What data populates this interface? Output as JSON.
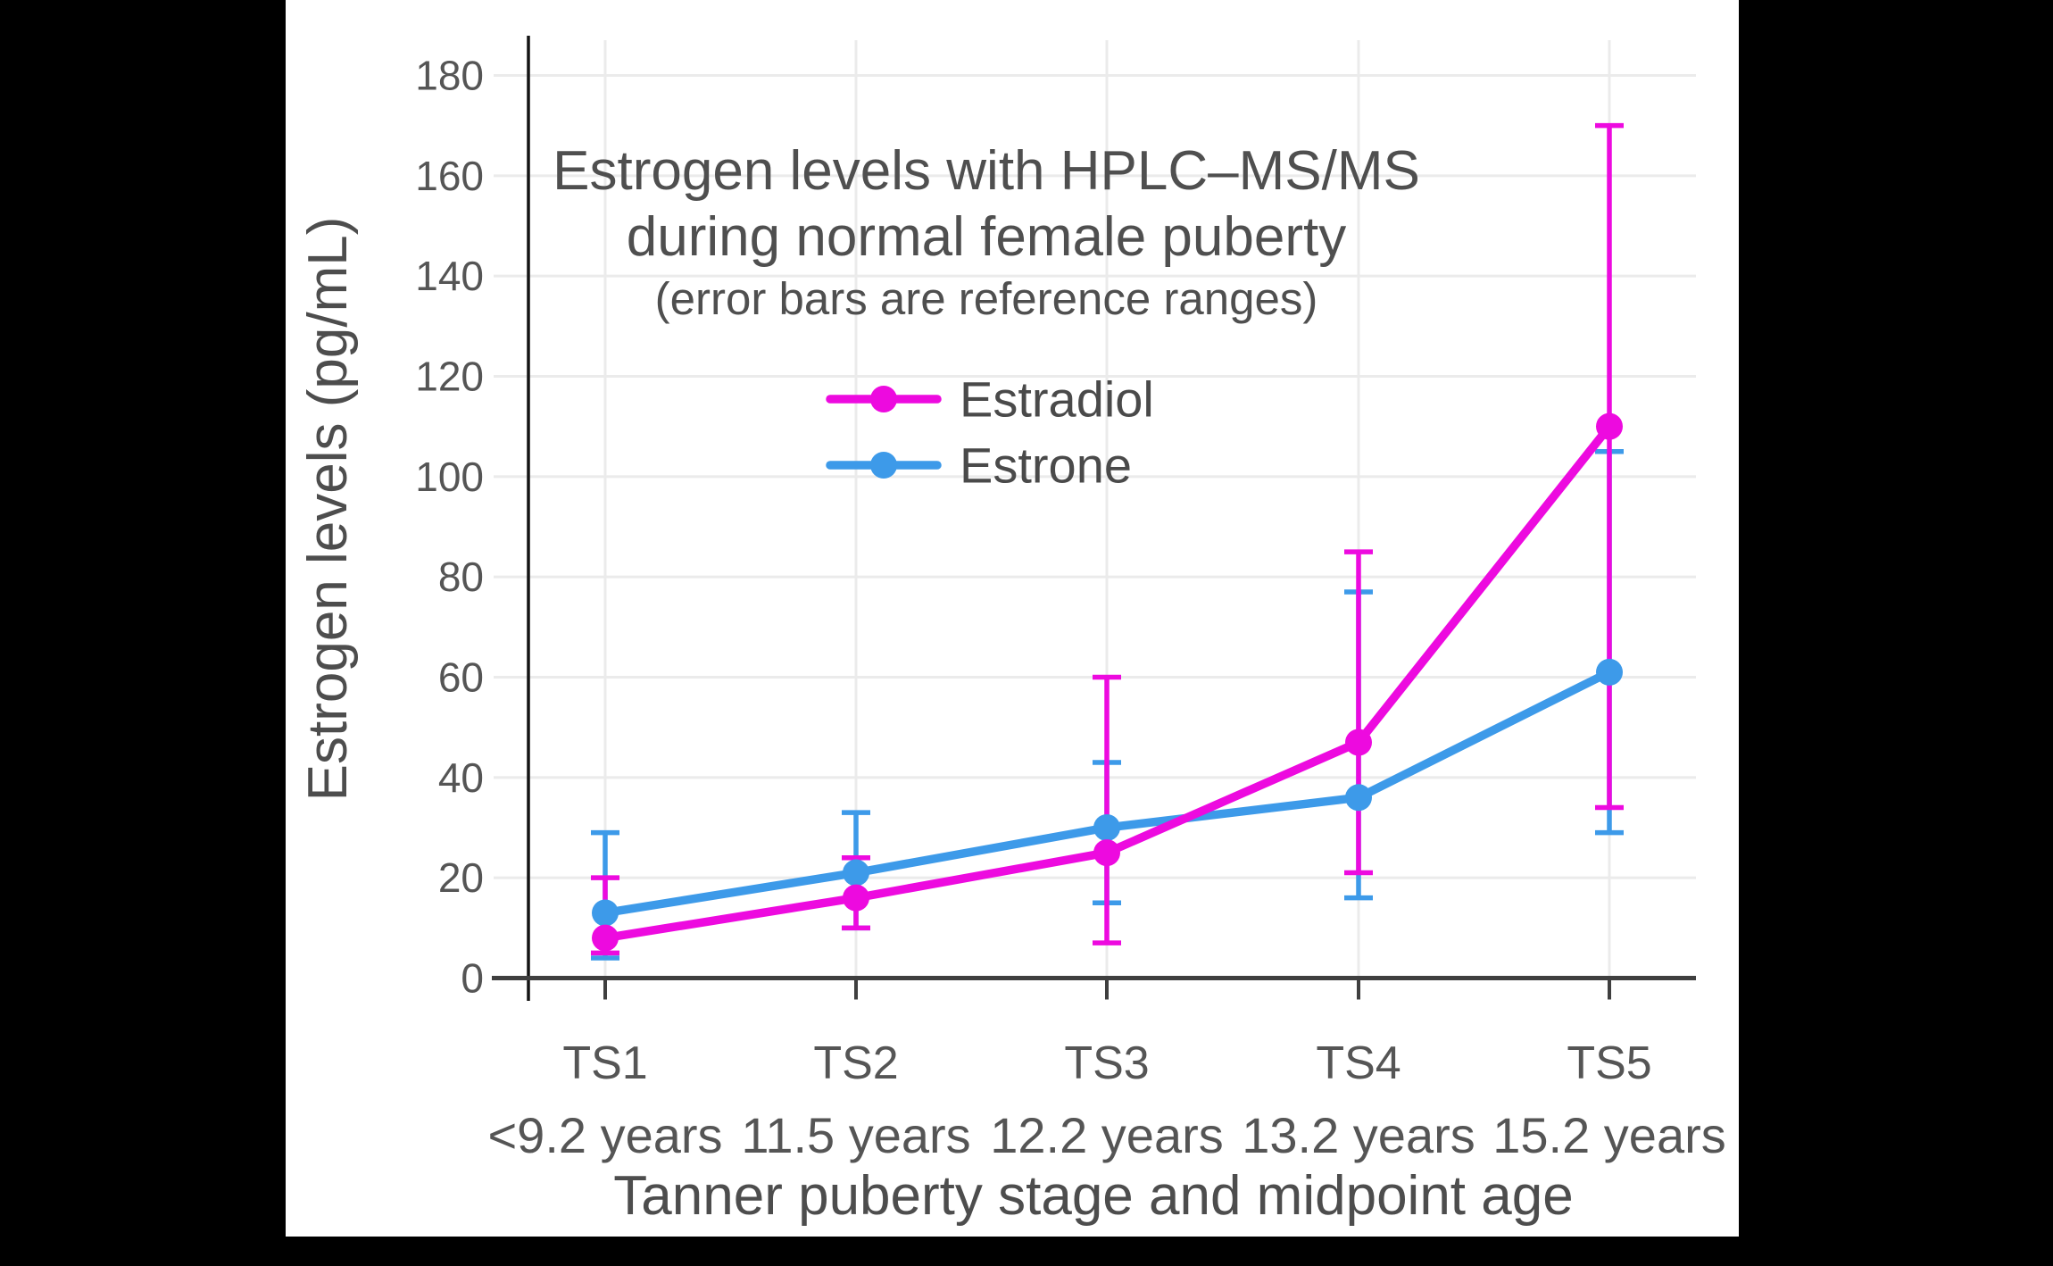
{
  "panel": {
    "background": "#ffffff",
    "letterbox_color": "#000000"
  },
  "chart_data": {
    "type": "line",
    "title_line1": "Estrogen levels with HPLC–MS/MS",
    "title_line2": "during normal female puberty",
    "subtitle": "(error bars are reference ranges)",
    "xlabel": "Tanner puberty stage and midpoint age",
    "ylabel": "Estrogen levels (pg/mL)",
    "categories": [
      "TS1",
      "TS2",
      "TS3",
      "TS4",
      "TS5"
    ],
    "category_ages": [
      "<9.2 years",
      "11.5 years",
      "12.2 years",
      "13.2 years",
      "15.2 years"
    ],
    "yticks": [
      0,
      20,
      40,
      60,
      80,
      100,
      120,
      140,
      160,
      180
    ],
    "ylim": [
      0,
      187
    ],
    "grid": true,
    "legend_position": "upper center inside plot",
    "series": [
      {
        "name": "Estradiol",
        "color": "#ED0ADF",
        "values": [
          8,
          16,
          25,
          47,
          110
        ],
        "err_low": [
          5,
          10,
          7,
          21,
          34
        ],
        "err_high": [
          20,
          24,
          60,
          85,
          170
        ]
      },
      {
        "name": "Estrone",
        "color": "#3D9AE9",
        "values": [
          13,
          21,
          30,
          36,
          61
        ],
        "err_low": [
          4,
          10,
          15,
          16,
          29
        ],
        "err_high": [
          29,
          33,
          43,
          77,
          105
        ]
      }
    ],
    "style_colors": {
      "gridline": "#ebebeb",
      "y_axis_line": "#141414",
      "x_axis_line": "#3f3f3f",
      "text": "#555555"
    }
  }
}
